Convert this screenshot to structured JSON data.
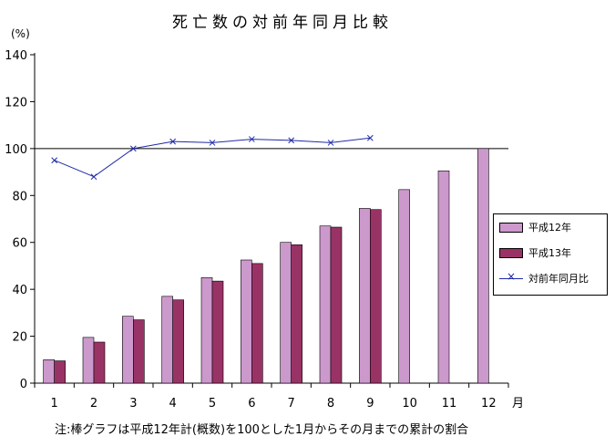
{
  "title": "死亡数の対前年同月比較",
  "y_unit": "(%)",
  "x_unit": "月",
  "note": "注:棒グラフは平成12年計(概数)を100とした1月からその月までの累計の割合",
  "legend": {
    "bar1": "平成12年",
    "bar2": "平成13年",
    "line": "対前年同月比"
  },
  "colors": {
    "bar1": "#cc99cc",
    "bar2": "#993366",
    "line": "#1f2aa8"
  },
  "chart_data": {
    "type": "bar",
    "title": "死亡数の対前年同月比較",
    "xlabel": "月",
    "ylabel": "(%)",
    "ylim": [
      0,
      140
    ],
    "yticks": [
      0,
      20,
      40,
      60,
      80,
      100,
      120,
      140
    ],
    "categories": [
      "1",
      "2",
      "3",
      "4",
      "5",
      "6",
      "7",
      "8",
      "9",
      "10",
      "11",
      "12"
    ],
    "series": [
      {
        "name": "平成12年",
        "type": "bar",
        "values": [
          10,
          19.5,
          28.5,
          37,
          45,
          52.5,
          60,
          67,
          74.5,
          82.5,
          90.5,
          100
        ]
      },
      {
        "name": "平成13年",
        "type": "bar",
        "values": [
          9.5,
          17.5,
          27,
          35.5,
          43.5,
          51,
          59,
          66.5,
          74,
          null,
          null,
          null
        ]
      },
      {
        "name": "対前年同月比",
        "type": "line",
        "values": [
          95,
          88,
          100,
          103,
          102.5,
          104,
          103.5,
          102.5,
          104.5,
          null,
          null,
          null
        ]
      }
    ],
    "reference_line": 100,
    "legend_position": "right"
  }
}
